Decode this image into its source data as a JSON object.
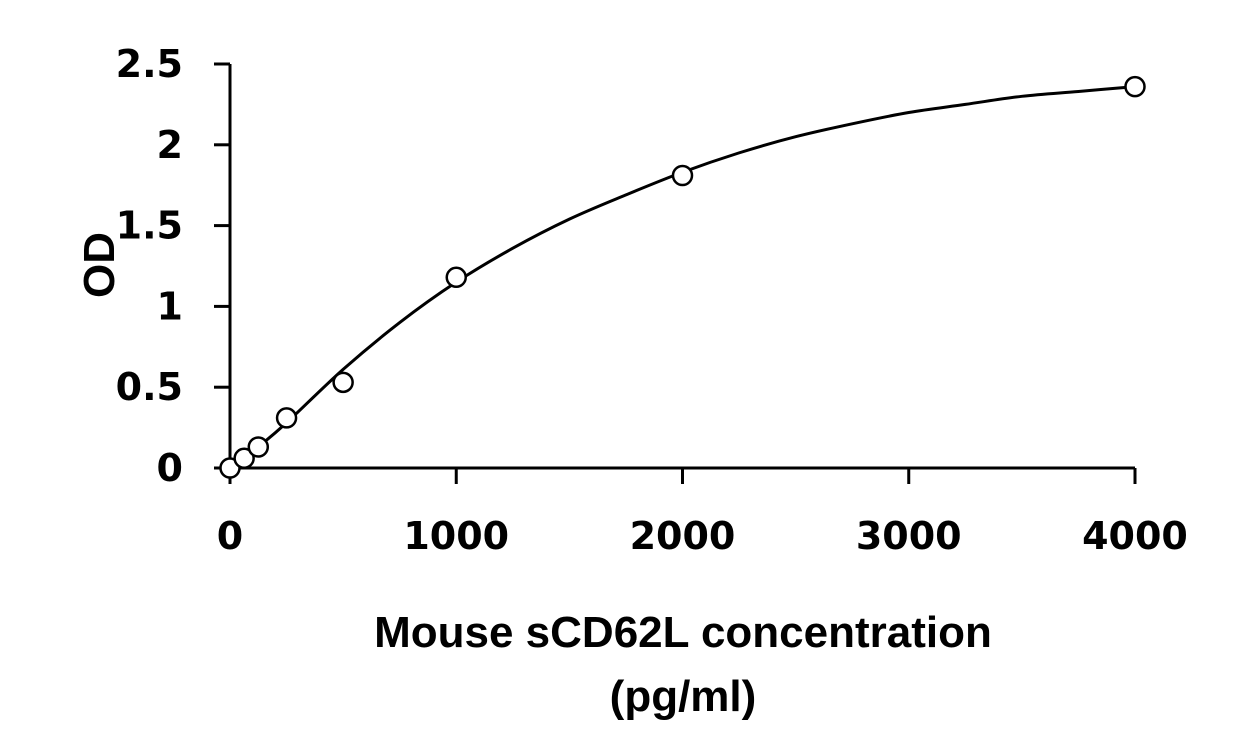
{
  "chart_data": {
    "type": "scatter",
    "title": "",
    "xlabel_lines": [
      "Mouse sCD62L concentration",
      "(pg/ml)"
    ],
    "ylabel": "OD",
    "xlim": [
      0,
      4000
    ],
    "ylim": [
      0,
      2.5
    ],
    "x_ticks": [
      "0",
      "1000",
      "2000",
      "3000",
      "4000"
    ],
    "x_tick_values": [
      0,
      1000,
      2000,
      3000,
      4000
    ],
    "y_ticks": [
      "0",
      "0.5",
      "1",
      "1.5",
      "2",
      "2.5"
    ],
    "y_tick_values": [
      0,
      0.5,
      1,
      1.5,
      2,
      2.5
    ],
    "grid": false,
    "legend": "none",
    "series": [
      {
        "x": [
          0,
          62.5,
          125,
          250,
          500,
          1000,
          2000,
          4000
        ],
        "y": [
          0.0,
          0.06,
          0.13,
          0.31,
          0.53,
          1.18,
          1.81,
          2.36
        ]
      }
    ],
    "fit_curve": {
      "style": "smooth fitted curve",
      "x": [
        0,
        62.5,
        125,
        250,
        500,
        750,
        1000,
        1250,
        1500,
        1750,
        2000,
        2250,
        2500,
        2750,
        3000,
        3250,
        3500,
        3750,
        4000
      ],
      "y": [
        0.0,
        0.06,
        0.13,
        0.28,
        0.61,
        0.9,
        1.15,
        1.36,
        1.54,
        1.69,
        1.83,
        1.95,
        2.05,
        2.13,
        2.2,
        2.25,
        2.3,
        2.33,
        2.36
      ]
    },
    "colors": {
      "background": "#ffffff",
      "axis": "#000000",
      "curve": "#000000",
      "marker_fill": "#ffffff",
      "marker_stroke": "#000000"
    }
  }
}
